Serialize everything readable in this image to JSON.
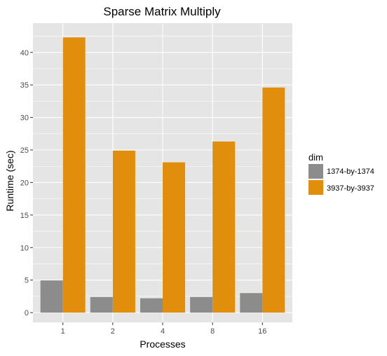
{
  "chart_data": {
    "type": "bar",
    "title": "Sparse Matrix Multiply",
    "xlabel": "Processes",
    "ylabel": "Runtime (sec)",
    "categories": [
      "1",
      "2",
      "4",
      "8",
      "16"
    ],
    "series": [
      {
        "name": "1374-by-1374",
        "color": "#8c8c8c",
        "values": [
          4.95,
          2.4,
          2.2,
          2.4,
          3.0
        ]
      },
      {
        "name": "3937-by-3937",
        "color": "#e08e0b",
        "values": [
          42.3,
          24.9,
          23.1,
          26.3,
          34.6
        ]
      }
    ],
    "ylim": [
      -1.5,
      44.5
    ],
    "yticks": [
      0,
      5,
      10,
      15,
      20,
      25,
      30,
      35,
      40
    ],
    "grid": true,
    "legend": {
      "title": "dim",
      "position": "right"
    },
    "colors": {
      "panel": "#e5e5e5",
      "grid": "#ffffff"
    }
  }
}
